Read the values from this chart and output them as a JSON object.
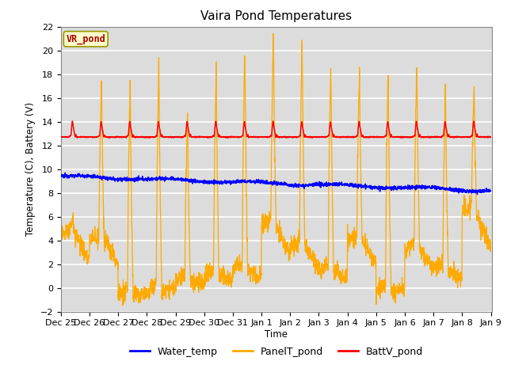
{
  "title": "Vaira Pond Temperatures",
  "xlabel": "Time",
  "ylabel": "Temperature (C), Battery (V)",
  "ylim": [
    -2,
    22
  ],
  "yticks": [
    -2,
    0,
    2,
    4,
    6,
    8,
    10,
    12,
    14,
    16,
    18,
    20,
    22
  ],
  "fig_facecolor": "#ffffff",
  "plot_facecolor": "#dcdcdc",
  "grid_color": "#ffffff",
  "water_temp_color": "#0000ff",
  "panel_temp_color": "#ffaa00",
  "batt_color": "#ff0000",
  "legend_items": [
    "Water_temp",
    "PanelT_pond",
    "BattV_pond"
  ],
  "subtitle_box_text": "VR_pond",
  "subtitle_box_facecolor": "#ffffcc",
  "subtitle_box_edgecolor": "#999900",
  "subtitle_box_textcolor": "#aa0000",
  "n_days": 15,
  "samples_per_day": 144,
  "start_year": 2023,
  "start_month": 12,
  "start_day": 25
}
